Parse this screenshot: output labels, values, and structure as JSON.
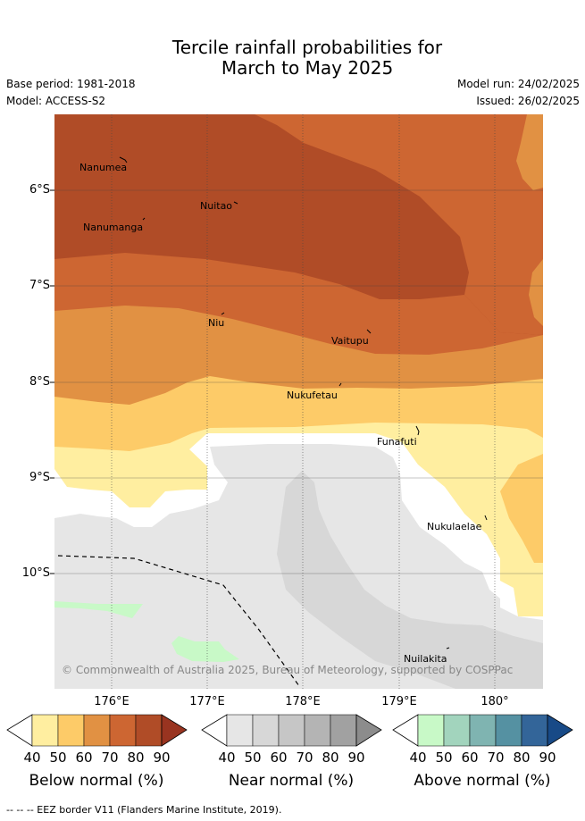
{
  "title_line1": "Tercile rainfall probabilities for",
  "title_line2": "March to May 2025",
  "base_period": "Base period: 1981-2018",
  "model": "Model: ACCESS-S2",
  "model_run": "Model run: 24/02/2025",
  "issued": "Issued: 26/02/2025",
  "lat_ticks": [
    "6°S",
    "7°S",
    "8°S",
    "9°S",
    "10°S"
  ],
  "lon_ticks": [
    "176°E",
    "177°E",
    "178°E",
    "179°E",
    "180°"
  ],
  "places": {
    "nanumea": "Nanumea",
    "nuitao": "Nuitao",
    "nanumanga": "Nanumanga",
    "niu": "Niu",
    "vaitupu": "Vaitupu",
    "nukufetau": "Nukufetau",
    "funafuti": "Funafuti",
    "nukulaelae": "Nukulaelae",
    "nuilakita": "Nuilakita"
  },
  "copyright": "© Commonwealth of Australia 2025, Bureau of Meteorology, supported by COSPPac",
  "colorbars": {
    "below": {
      "label": "Below normal (%)",
      "ticks": [
        "40",
        "50",
        "60",
        "70",
        "80",
        "90"
      ],
      "colors": [
        "#ffeea0",
        "#fdcb68",
        "#e19143",
        "#cd6632",
        "#b04c27",
        "#993420"
      ]
    },
    "near": {
      "label": "Near normal (%)",
      "ticks": [
        "40",
        "50",
        "60",
        "70",
        "80",
        "90"
      ],
      "colors": [
        "#e6e6e6",
        "#d7d7d7",
        "#c6c6c6",
        "#b4b4b4",
        "#a1a1a1",
        "#8c8c8c"
      ]
    },
    "above": {
      "label": "Above normal (%)",
      "ticks": [
        "40",
        "50",
        "60",
        "70",
        "80",
        "90"
      ],
      "colors": [
        "#c8f9c7",
        "#a2d4bd",
        "#7fb4b1",
        "#5591a2",
        "#336599",
        "#184a87"
      ]
    }
  },
  "footer": "--  --  -- EEZ border V11 (Flanders Marine Institute, 2019)."
}
